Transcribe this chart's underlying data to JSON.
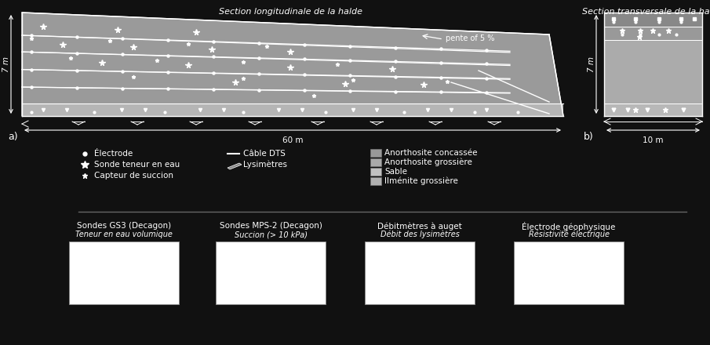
{
  "fig_bg": "#111111",
  "title_long": "Section longitudinale de la halde",
  "title_trans": "Section transversale de la halde",
  "pente_label": "pente of 5 %",
  "dim_7m": "7 m",
  "dim_60m": "60 m",
  "dim_10m": "10 m",
  "label_a": "a)",
  "label_b": "b)",
  "color_body": "#999999",
  "color_base": "#b8b8b8",
  "color_top_layer": "#888888",
  "color_mid_layer": "#aaaaaa",
  "color_bot_layer": "#c0c0c0",
  "color_anorthosite_concassee": "#999999",
  "color_anorthosite_grossiere": "#aaaaaa",
  "color_sable": "#c0c0c0",
  "color_ilmenite_grossiere": "#b0b0b0",
  "bottom_titles": [
    "Sondes GS3 (Decagon)",
    "Sondes MPS-2 (Decagon)",
    "Débitmètres à auget",
    "Électrode géophysique"
  ],
  "bottom_subtitles": [
    "Teneur en eau volumique",
    "Succion (> 10 kPa)",
    "Débit des lysimètres",
    "Résistivité électrique"
  ]
}
